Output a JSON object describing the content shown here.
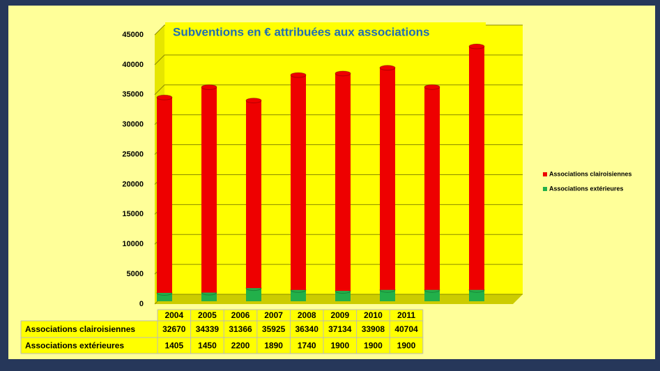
{
  "chart_data": {
    "type": "bar",
    "stacked": true,
    "title": "Subventions en € attribuées aux associations",
    "categories": [
      "2004",
      "2005",
      "2006",
      "2007",
      "2008",
      "2009",
      "2010",
      "2011"
    ],
    "series": [
      {
        "name": "Associations extérieures",
        "color": "#22b04a",
        "values": [
          1405,
          1450,
          2200,
          1890,
          1740,
          1900,
          1900,
          1900
        ]
      },
      {
        "name": "Associations clairoisiennes",
        "color": "#ee0000",
        "values": [
          32670,
          34339,
          31366,
          35925,
          36340,
          37134,
          33908,
          40704
        ]
      }
    ],
    "ylim": [
      0,
      45000
    ],
    "yticks": [
      0,
      5000,
      10000,
      15000,
      20000,
      25000,
      30000,
      35000,
      40000,
      45000
    ],
    "grid": true
  }
}
